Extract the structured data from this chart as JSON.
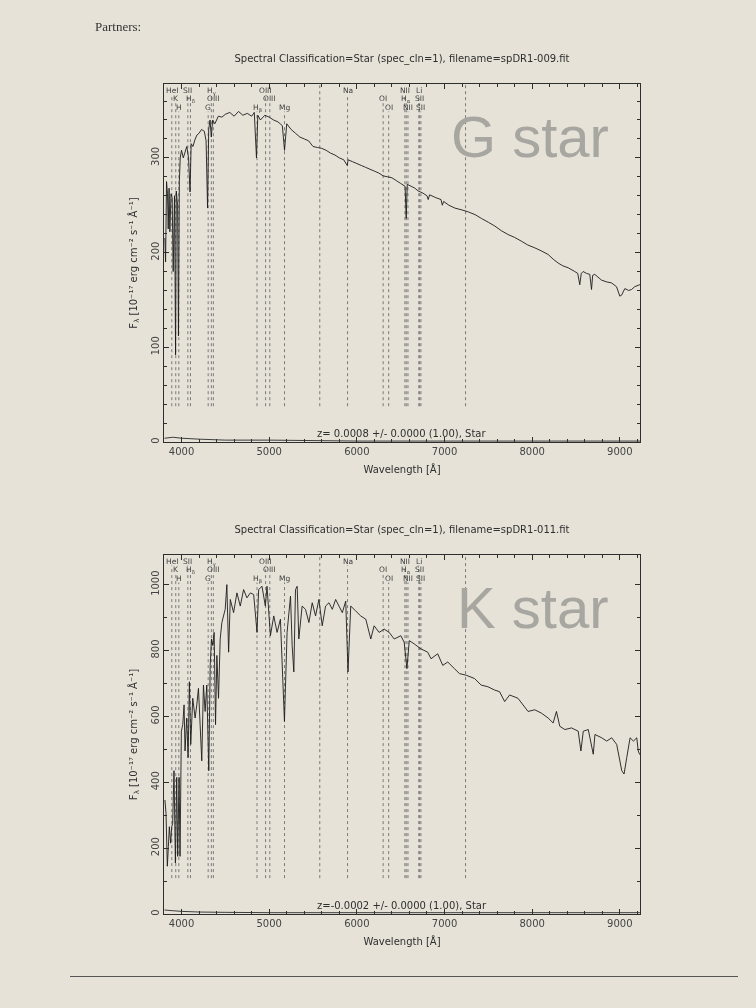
{
  "chart_data": [
    {
      "type": "line",
      "title": "Spectral Classification=Star (spec_cln=1), filename=spDR1-009.fit",
      "xlabel": "Wavelength [Å]",
      "ylabel": "F$_{λ}$ [10⁻¹⁷ erg cm⁻² s⁻¹ Å⁻¹]",
      "annotations": [
        "z= 0.0008 +/- 0.0000 (1.00), Star",
        "G star",
        "Partners:"
      ],
      "xlim": [
        3800,
        9230
      ],
      "ylim": [
        0,
        378
      ],
      "xticks": [
        4000,
        {
          "value": 4200,
          "label": null
        },
        {
          "value": 4400,
          "label": null
        },
        {
          "value": 4600,
          "label": null
        },
        {
          "value": 4800,
          "label": null
        },
        5000,
        {
          "value": 5200,
          "label": null
        },
        {
          "value": 5400,
          "label": null
        },
        {
          "value": 5600,
          "label": null
        },
        {
          "value": 5800,
          "label": null
        },
        6000,
        {
          "value": 6200,
          "label": null
        },
        {
          "value": 6400,
          "label": null
        },
        {
          "value": 6600,
          "label": null
        },
        {
          "value": 6800,
          "label": null
        },
        7000,
        {
          "value": 7200,
          "label": null
        },
        {
          "value": 7400,
          "label": null
        },
        {
          "value": 7600,
          "label": null
        },
        {
          "value": 7800,
          "label": null
        },
        8000,
        {
          "value": 8200,
          "label": null
        },
        {
          "value": 8400,
          "label": null
        },
        {
          "value": 8600,
          "label": null
        },
        {
          "value": 8800,
          "label": null
        },
        9000,
        {
          "value": 9200,
          "label": null
        }
      ],
      "yticks": [
        0,
        {
          "value": 20,
          "label": null
        },
        {
          "value": 40,
          "label": null
        },
        {
          "value": 60,
          "label": null
        },
        {
          "value": 80,
          "label": null
        },
        100,
        {
          "value": 120,
          "label": null
        },
        {
          "value": 140,
          "label": null
        },
        {
          "value": 160,
          "label": null
        },
        {
          "value": 180,
          "label": null
        },
        200,
        {
          "value": 220,
          "label": null
        },
        {
          "value": 240,
          "label": null
        },
        {
          "value": 260,
          "label": null
        },
        {
          "value": 280,
          "label": null
        },
        300,
        {
          "value": 320,
          "label": null
        },
        {
          "value": 340,
          "label": null
        },
        {
          "value": 360,
          "label": null
        }
      ],
      "series": [
        {
          "color": "#1c1c1c",
          "x": [
            3810,
            3818,
            3829,
            3840,
            3848,
            3858,
            3867,
            3880,
            3893,
            3905,
            3920,
            3932,
            3940,
            3955,
            3965,
            3975,
            3985,
            4000,
            4020,
            4040,
            4060,
            4080,
            4097,
            4110,
            4130,
            4152,
            4175,
            4200,
            4228,
            4260,
            4280,
            4297,
            4310,
            4325,
            4340,
            4355,
            4380,
            4420,
            4460,
            4500,
            4550,
            4600,
            4650,
            4700,
            4750,
            4800,
            4830,
            4855,
            4870,
            4900,
            4950,
            5000,
            5050,
            5100,
            5150,
            5175,
            5200,
            5250,
            5300,
            5350,
            5400,
            5450,
            5500,
            5550,
            5600,
            5650,
            5700,
            5750,
            5800,
            5850,
            5890,
            5900,
            5950,
            6000,
            6050,
            6100,
            6150,
            6200,
            6250,
            6300,
            6350,
            6400,
            6450,
            6500,
            6550,
            6563,
            6575,
            6620,
            6662,
            6700,
            6750,
            6800,
            6814,
            6830,
            6900,
            6960,
            6975,
            6990,
            7050,
            7118,
            7200,
            7270,
            7350,
            7422,
            7500,
            7574,
            7650,
            7726,
            7800,
            7878,
            7950,
            8030,
            8100,
            8182,
            8240,
            8296,
            8350,
            8410,
            8486,
            8520,
            8543,
            8560,
            8581,
            8620,
            8657,
            8677,
            8690,
            8714,
            8790,
            8850,
            8905,
            8962,
            9000,
            9020,
            9057,
            9100,
            9133,
            9170,
            9225
          ],
          "values": [
            215,
            190,
            275,
            262,
            225,
            268,
            222,
            262,
            258,
            180,
            260,
            92,
            265,
            250,
            112,
            275,
            300,
            308,
            300,
            306,
            312,
            300,
            264,
            315,
            312,
            319,
            324,
            326,
            330,
            328,
            318,
            247,
            330,
            340,
            322,
            340,
            336,
            344,
            343,
            346,
            348,
            344,
            349,
            345,
            347,
            344,
            348,
            300,
            345,
            340,
            345,
            343,
            340,
            338,
            334,
            308,
            336,
            330,
            326,
            322,
            320,
            318,
            312,
            311,
            310,
            308,
            305,
            303,
            300,
            298,
            292,
            298,
            296,
            294,
            292,
            290,
            288,
            286,
            284,
            281,
            280,
            279,
            276,
            273,
            270,
            236,
            272,
            270,
            268,
            265,
            263,
            260,
            256,
            261,
            258,
            256,
            250,
            254,
            250,
            247,
            245,
            243,
            240,
            236,
            232,
            228,
            223,
            219,
            216,
            212,
            208,
            205,
            202,
            198,
            193,
            189,
            186,
            184,
            180,
            178,
            166,
            178,
            180,
            178,
            177,
            161,
            176,
            177,
            171,
            169,
            168,
            164,
            154,
            155,
            162,
            160,
            161,
            164,
            166
          ]
        },
        {
          "color": "#2a2a2a",
          "x": [
            3810,
            3900,
            4000,
            4200,
            4500,
            5000,
            6000,
            7000,
            8000,
            9225
          ],
          "values": [
            4,
            5,
            4,
            3,
            2,
            2,
            1,
            1,
            1,
            1
          ]
        }
      ],
      "ref_lines": [
        {
          "axis": "x",
          "value": 3889,
          "label": "HeI",
          "color": "#7a7a7a",
          "line_style": "dotted"
        },
        {
          "axis": "x",
          "value": 3934,
          "label": "K",
          "color": "#7a7a7a",
          "line_style": "dotted"
        },
        {
          "axis": "x",
          "value": 3969,
          "label": "H",
          "color": "#7a7a7a",
          "line_style": "dotted"
        },
        {
          "axis": "x",
          "value": 4072,
          "label": "SII",
          "color": "#7a7a7a",
          "line_style": "dotted"
        },
        {
          "axis": "x",
          "value": 4102,
          "label": "H$_{δ}$",
          "color": "#7a7a7a",
          "line_style": "dotted"
        },
        {
          "axis": "x",
          "value": 4304,
          "label": "G",
          "color": "#7a7a7a",
          "line_style": "dotted"
        },
        {
          "axis": "x",
          "value": 4340,
          "label": "H$_{γ}$",
          "color": "#7a7a7a",
          "line_style": "dotted"
        },
        {
          "axis": "x",
          "value": 4363,
          "label": "OIII",
          "color": "#7a7a7a",
          "line_style": "dotted"
        },
        {
          "axis": "x",
          "value": 4861,
          "label": "H$_{β}$",
          "color": "#7a7a7a",
          "line_style": "dotted"
        },
        {
          "axis": "x",
          "value": 4959,
          "label": "OIII",
          "color": "#7a7a7a",
          "line_style": "dotted"
        },
        {
          "axis": "x",
          "value": 5007,
          "label": "OIII",
          "color": "#7a7a7a",
          "line_style": "dotted"
        },
        {
          "axis": "x",
          "value": 5175,
          "label": "Mg",
          "color": "#7a7a7a",
          "line_style": "dotted"
        },
        {
          "axis": "x",
          "value": 5577,
          "color": "#7a7a7a",
          "line_style": "dotted"
        },
        {
          "axis": "x",
          "value": 5894,
          "label": "Na",
          "color": "#7a7a7a",
          "line_style": "dotted"
        },
        {
          "axis": "x",
          "value": 6300,
          "label": "OI",
          "color": "#7a7a7a",
          "line_style": "dotted"
        },
        {
          "axis": "x",
          "value": 6363,
          "label": "OI",
          "color": "#7a7a7a",
          "line_style": "dotted"
        },
        {
          "axis": "x",
          "value": 6548,
          "label": "NII",
          "color": "#7a7a7a",
          "line_style": "dotted"
        },
        {
          "axis": "x",
          "value": 6563,
          "label": "H$_{α}$",
          "color": "#7a7a7a",
          "line_style": "dotted"
        },
        {
          "axis": "x",
          "value": 6583,
          "label": "NII",
          "color": "#7a7a7a",
          "line_style": "dotted"
        },
        {
          "axis": "x",
          "value": 6707,
          "label": "Li",
          "color": "#7a7a7a",
          "line_style": "dotted"
        },
        {
          "axis": "x",
          "value": 6716,
          "label": "SII",
          "color": "#7a7a7a",
          "line_style": "dotted"
        },
        {
          "axis": "x",
          "value": 6731,
          "label": "SII",
          "color": "#7a7a7a",
          "line_style": "dotted"
        },
        {
          "axis": "x",
          "value": 7240,
          "color": "#7a7a7a",
          "line_style": "dotted"
        }
      ]
    },
    {
      "type": "line",
      "title": "Spectral Classification=Star (spec_cln=1), filename=spDR1-011.fit",
      "xlabel": "Wavelength [Å]",
      "ylabel": "F$_{λ}$ [10⁻¹⁷ erg cm⁻² s⁻¹ Å⁻¹]",
      "annotations": [
        "z=-0.0002 +/- 0.0000 (1.00), Star",
        "K star"
      ],
      "xlim": [
        3800,
        9230
      ],
      "ylim": [
        0,
        1090
      ],
      "xticks": [
        4000,
        {
          "value": 4200,
          "label": null
        },
        {
          "value": 4400,
          "label": null
        },
        {
          "value": 4600,
          "label": null
        },
        {
          "value": 4800,
          "label": null
        },
        5000,
        {
          "value": 5200,
          "label": null
        },
        {
          "value": 5400,
          "label": null
        },
        {
          "value": 5600,
          "label": null
        },
        {
          "value": 5800,
          "label": null
        },
        6000,
        {
          "value": 6200,
          "label": null
        },
        {
          "value": 6400,
          "label": null
        },
        {
          "value": 6600,
          "label": null
        },
        {
          "value": 6800,
          "label": null
        },
        7000,
        {
          "value": 7200,
          "label": null
        },
        {
          "value": 7400,
          "label": null
        },
        {
          "value": 7600,
          "label": null
        },
        {
          "value": 7800,
          "label": null
        },
        8000,
        {
          "value": 8200,
          "label": null
        },
        {
          "value": 8400,
          "label": null
        },
        {
          "value": 8600,
          "label": null
        },
        {
          "value": 8800,
          "label": null
        },
        9000,
        {
          "value": 9200,
          "label": null
        }
      ],
      "yticks": [
        0,
        {
          "value": 100,
          "label": null
        },
        200,
        {
          "value": 300,
          "label": null
        },
        400,
        {
          "value": 500,
          "label": null
        },
        600,
        {
          "value": 700,
          "label": null
        },
        800,
        {
          "value": 900,
          "label": null
        },
        1000
      ],
      "series": [
        {
          "color": "#1c1c1c",
          "x": [
            3811,
            3823,
            3838,
            3850,
            3861,
            3876,
            3888,
            3899,
            3914,
            3930,
            3945,
            3956,
            3972,
            3983,
            3998,
            4014,
            4029,
            4040,
            4059,
            4075,
            4090,
            4105,
            4128,
            4155,
            4174,
            4193,
            4212,
            4231,
            4250,
            4269,
            4288,
            4311,
            4327,
            4342,
            4357,
            4372,
            4388,
            4403,
            4422,
            4441,
            4460,
            4498,
            4517,
            4537,
            4556,
            4594,
            4632,
            4670,
            4708,
            4746,
            4785,
            4823,
            4861,
            4880,
            4918,
            4956,
            4975,
            5014,
            5052,
            5090,
            5128,
            5174,
            5204,
            5243,
            5262,
            5281,
            5300,
            5319,
            5338,
            5376,
            5414,
            5453,
            5491,
            5529,
            5567,
            5605,
            5643,
            5682,
            5720,
            5758,
            5796,
            5834,
            5873,
            5899,
            5930,
            5987,
            6044,
            6102,
            6159,
            6197,
            6254,
            6311,
            6369,
            6426,
            6502,
            6540,
            6571,
            6598,
            6655,
            6731,
            6808,
            6846,
            6922,
            6980,
            7037,
            7113,
            7170,
            7247,
            7342,
            7418,
            7495,
            7571,
            7628,
            7686,
            7743,
            7838,
            7953,
            8029,
            8105,
            8182,
            8239,
            8277,
            8315,
            8373,
            8449,
            8525,
            8556,
            8583,
            8640,
            8697,
            8716,
            8793,
            8850,
            8907,
            8964,
            9022,
            9048,
            9079,
            9117,
            9155,
            9193,
            9210,
            9225
          ],
          "values": [
            345,
            305,
            145,
            205,
            265,
            215,
            265,
            275,
            435,
            155,
            415,
            175,
            415,
            175,
            555,
            575,
            635,
            495,
            595,
            475,
            705,
            515,
            655,
            595,
            635,
            685,
            575,
            465,
            695,
            615,
            695,
            435,
            755,
            835,
            815,
            855,
            575,
            785,
            655,
            835,
            885,
            925,
            1000,
            795,
            955,
            915,
            975,
            935,
            985,
            960,
            975,
            970,
            855,
            985,
            995,
            935,
            995,
            845,
            905,
            855,
            895,
            585,
            855,
            965,
            815,
            735,
            985,
            995,
            835,
            935,
            925,
            885,
            945,
            905,
            955,
            875,
            935,
            945,
            925,
            955,
            935,
            915,
            950,
            735,
            935,
            920,
            905,
            895,
            835,
            875,
            855,
            865,
            855,
            835,
            845,
            825,
            745,
            830,
            820,
            805,
            795,
            775,
            790,
            755,
            765,
            745,
            730,
            725,
            715,
            695,
            690,
            680,
            675,
            645,
            665,
            655,
            615,
            620,
            610,
            595,
            580,
            615,
            570,
            560,
            565,
            555,
            495,
            555,
            560,
            485,
            545,
            535,
            525,
            535,
            515,
            435,
            425,
            475,
            535,
            525,
            535,
            495,
            485
          ]
        },
        {
          "color": "#2a2a2a",
          "x": [
            3810,
            3900,
            4000,
            4200,
            4500,
            5000,
            6000,
            7000,
            8000,
            9225
          ],
          "values": [
            12,
            10,
            8,
            6,
            5,
            4,
            4,
            4,
            4,
            4
          ]
        }
      ],
      "ref_lines": [
        {
          "axis": "x",
          "value": 3889,
          "label": "HeI",
          "color": "#7a7a7a",
          "line_style": "dotted"
        },
        {
          "axis": "x",
          "value": 3934,
          "label": "K",
          "color": "#7a7a7a",
          "line_style": "dotted"
        },
        {
          "axis": "x",
          "value": 3969,
          "label": "H",
          "color": "#7a7a7a",
          "line_style": "dotted"
        },
        {
          "axis": "x",
          "value": 4072,
          "label": "SII",
          "color": "#7a7a7a",
          "line_style": "dotted"
        },
        {
          "axis": "x",
          "value": 4102,
          "label": "H$_{δ}$",
          "color": "#7a7a7a",
          "line_style": "dotted"
        },
        {
          "axis": "x",
          "value": 4304,
          "label": "G",
          "color": "#7a7a7a",
          "line_style": "dotted"
        },
        {
          "axis": "x",
          "value": 4340,
          "label": "H$_{γ}$",
          "color": "#7a7a7a",
          "line_style": "dotted"
        },
        {
          "axis": "x",
          "value": 4363,
          "label": "OIII",
          "color": "#7a7a7a",
          "line_style": "dotted"
        },
        {
          "axis": "x",
          "value": 4861,
          "label": "H$_{β}$",
          "color": "#7a7a7a",
          "line_style": "dotted"
        },
        {
          "axis": "x",
          "value": 4959,
          "label": "OIII",
          "color": "#7a7a7a",
          "line_style": "dotted"
        },
        {
          "axis": "x",
          "value": 5007,
          "label": "OIII",
          "color": "#7a7a7a",
          "line_style": "dotted"
        },
        {
          "axis": "x",
          "value": 5175,
          "label": "Mg",
          "color": "#7a7a7a",
          "line_style": "dotted"
        },
        {
          "axis": "x",
          "value": 5577,
          "color": "#7a7a7a",
          "line_style": "dotted"
        },
        {
          "axis": "x",
          "value": 5894,
          "label": "Na",
          "color": "#7a7a7a",
          "line_style": "dotted"
        },
        {
          "axis": "x",
          "value": 6300,
          "label": "OI",
          "color": "#7a7a7a",
          "line_style": "dotted"
        },
        {
          "axis": "x",
          "value": 6363,
          "label": "OI",
          "color": "#7a7a7a",
          "line_style": "dotted"
        },
        {
          "axis": "x",
          "value": 6548,
          "label": "NII",
          "color": "#7a7a7a",
          "line_style": "dotted"
        },
        {
          "axis": "x",
          "value": 6563,
          "label": "H$_{α}$",
          "color": "#7a7a7a",
          "line_style": "dotted"
        },
        {
          "axis": "x",
          "value": 6583,
          "label": "NII",
          "color": "#7a7a7a",
          "line_style": "dotted"
        },
        {
          "axis": "x",
          "value": 6707,
          "label": "Li",
          "color": "#7a7a7a",
          "line_style": "dotted"
        },
        {
          "axis": "x",
          "value": 6716,
          "label": "SII",
          "color": "#7a7a7a",
          "line_style": "dotted"
        },
        {
          "axis": "x",
          "value": 6731,
          "label": "SII",
          "color": "#7a7a7a",
          "line_style": "dotted"
        },
        {
          "axis": "x",
          "value": 7240,
          "color": "#7a7a7a",
          "line_style": "dotted"
        }
      ]
    }
  ]
}
